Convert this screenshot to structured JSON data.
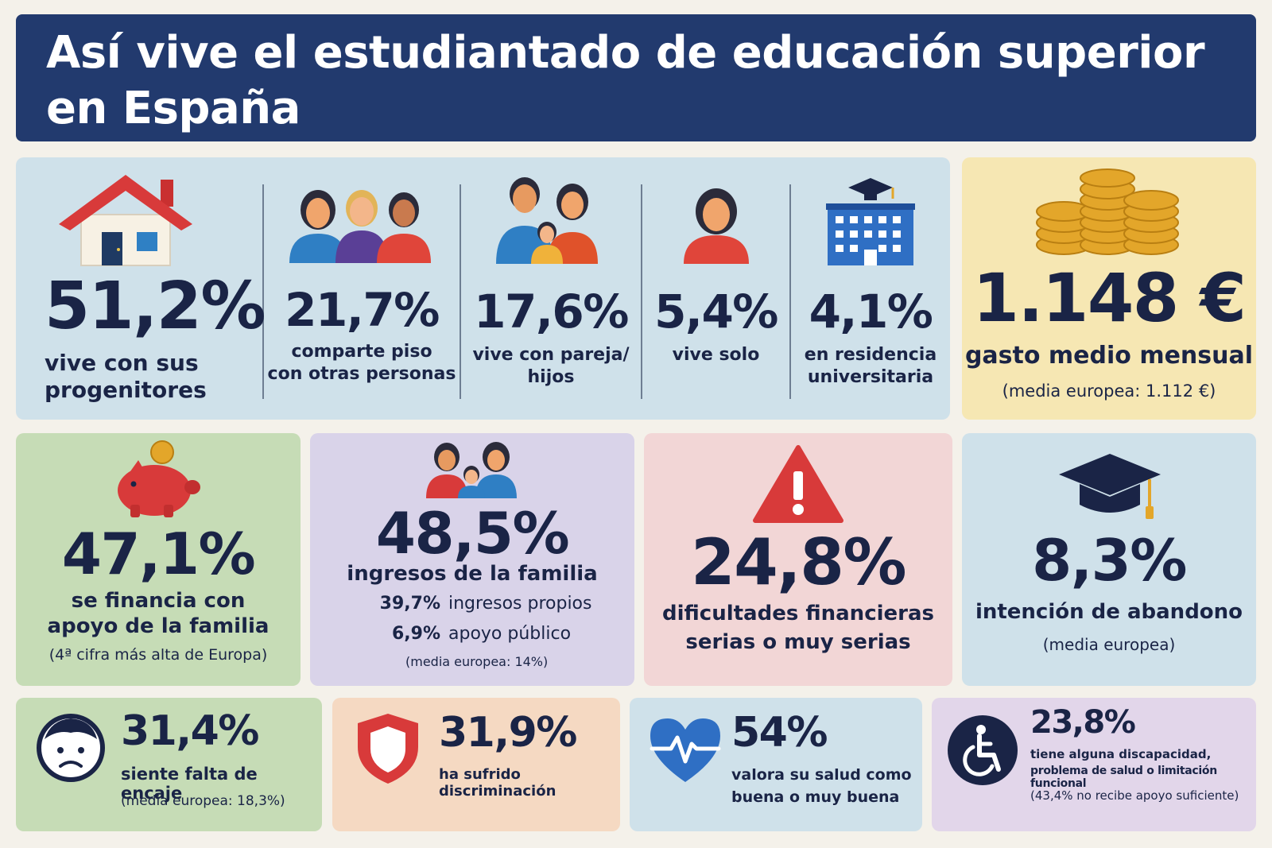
{
  "header": {
    "title_line1": "Así vive el estudiantado de educación superior",
    "title_line2": "en España"
  },
  "housing": [
    {
      "icon": "house-icon",
      "value": "51,2%",
      "label_line1": "vive con sus",
      "label_line2": "progenitores"
    },
    {
      "icon": "group-people-icon",
      "value": "21,7%",
      "label_line1": "comparte piso",
      "label_line2": "con otras personas"
    },
    {
      "icon": "family-icon",
      "value": "17,6%",
      "label_line1": "vive con pareja/",
      "label_line2": "hijos"
    },
    {
      "icon": "person-icon",
      "value": "5,4%",
      "label_line1": "vive solo",
      "label_line2": ""
    },
    {
      "icon": "university-building-icon",
      "value": "4,1%",
      "label_line1": "en residencia",
      "label_line2": "universitaria"
    }
  ],
  "spending": {
    "icon": "coins-icon",
    "value": "1.148 €",
    "label": "gasto medio mensual",
    "note": "(media europea: 1.112 €)"
  },
  "family_support": {
    "icon": "piggy-bank-icon",
    "value": "47,1%",
    "label_line1": "se financia con",
    "label_line2": "apoyo de la familia",
    "note": "(4ª cifra más alta de Europa)"
  },
  "income": {
    "icon": "family-group-icon",
    "value": "48,5%",
    "label": "ingresos de la familia",
    "rows": [
      {
        "value": "39,7%",
        "label": "ingresos propios"
      },
      {
        "value": "6,9%",
        "label": "apoyo público"
      }
    ],
    "note": "(media europea: 14%)"
  },
  "difficulties": {
    "icon": "warning-icon",
    "value": "24,8%",
    "label_line1": "dificultades financieras",
    "label_line2": "serias o muy serias"
  },
  "dropout": {
    "icon": "graduation-cap-icon",
    "value": "8,3%",
    "label": "intención de abandono",
    "note": "(media europea)"
  },
  "belonging": {
    "icon": "sad-face-icon",
    "value": "31,4%",
    "label": "siente falta de encaje",
    "note": "(media europea: 18,3%)"
  },
  "discrimination": {
    "icon": "shield-icon",
    "value": "31,9%",
    "label": "ha sufrido discriminación"
  },
  "health": {
    "icon": "heart-pulse-icon",
    "value": "54%",
    "label_line1": "valora su salud como",
    "label_line2": "buena o muy buena"
  },
  "disability": {
    "icon": "wheelchair-icon",
    "value": "23,8%",
    "label_line1": "tiene alguna discapacidad,",
    "label_line2": "problema de salud o limitación funcional",
    "note": "(43,4% no recibe apoyo suficiente)"
  },
  "colors": {
    "header_bg": "#223a6e",
    "text_dark": "#1a2446",
    "accent_red": "#d83a3a",
    "accent_blue": "#2f6fc4",
    "accent_gold": "#e3a62a"
  }
}
